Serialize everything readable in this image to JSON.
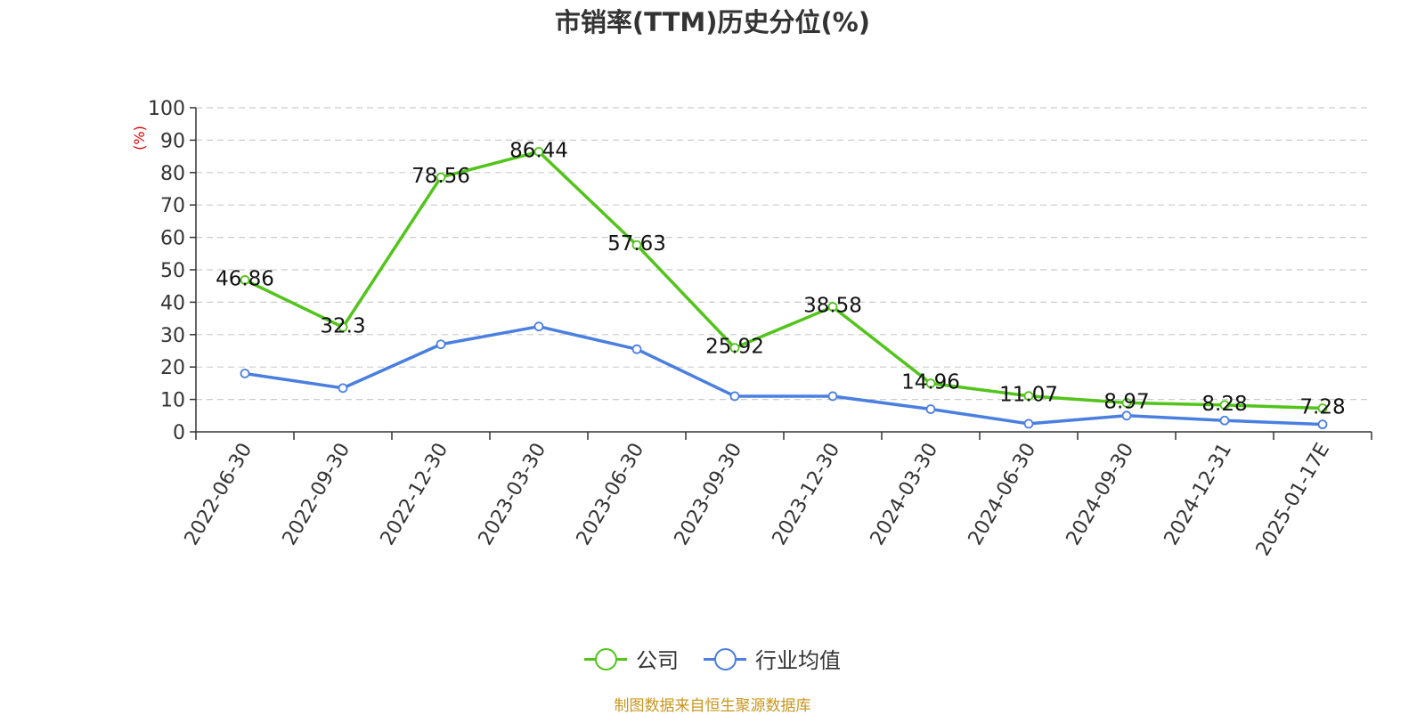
{
  "title": "市销率(TTM)历史分位(%)",
  "source": "制图数据来自恒生聚源数据库",
  "chart_data": {
    "type": "line",
    "categories": [
      "2022-06-30",
      "2022-09-30",
      "2022-12-30",
      "2023-03-30",
      "2023-06-30",
      "2023-09-30",
      "2023-12-30",
      "2024-03-30",
      "2024-06-30",
      "2024-09-30",
      "2024-12-31",
      "2025-01-17E"
    ],
    "ylabel": "(%)",
    "ylim": [
      0,
      100
    ],
    "yticks": [
      0,
      10,
      20,
      30,
      40,
      50,
      60,
      70,
      80,
      90,
      100
    ],
    "grid": true,
    "legend_position": "bottom",
    "series": [
      {
        "name": "公司",
        "color": "#52c41a",
        "values": [
          46.86,
          32.3,
          78.56,
          86.44,
          57.63,
          25.92,
          38.58,
          14.96,
          11.07,
          8.97,
          8.28,
          7.28
        ],
        "labels": [
          "46.86",
          "32.3",
          "78.56",
          "86.44",
          "57.63",
          "25.92",
          "38.58",
          "14.96",
          "11.07",
          "8.97",
          "8.28",
          "7.28"
        ]
      },
      {
        "name": "行业均值",
        "color": "#4a7fe0",
        "values": [
          18,
          13.5,
          27,
          32.5,
          25.5,
          11,
          11,
          7,
          2.5,
          5,
          3.5,
          2.3
        ]
      }
    ]
  }
}
